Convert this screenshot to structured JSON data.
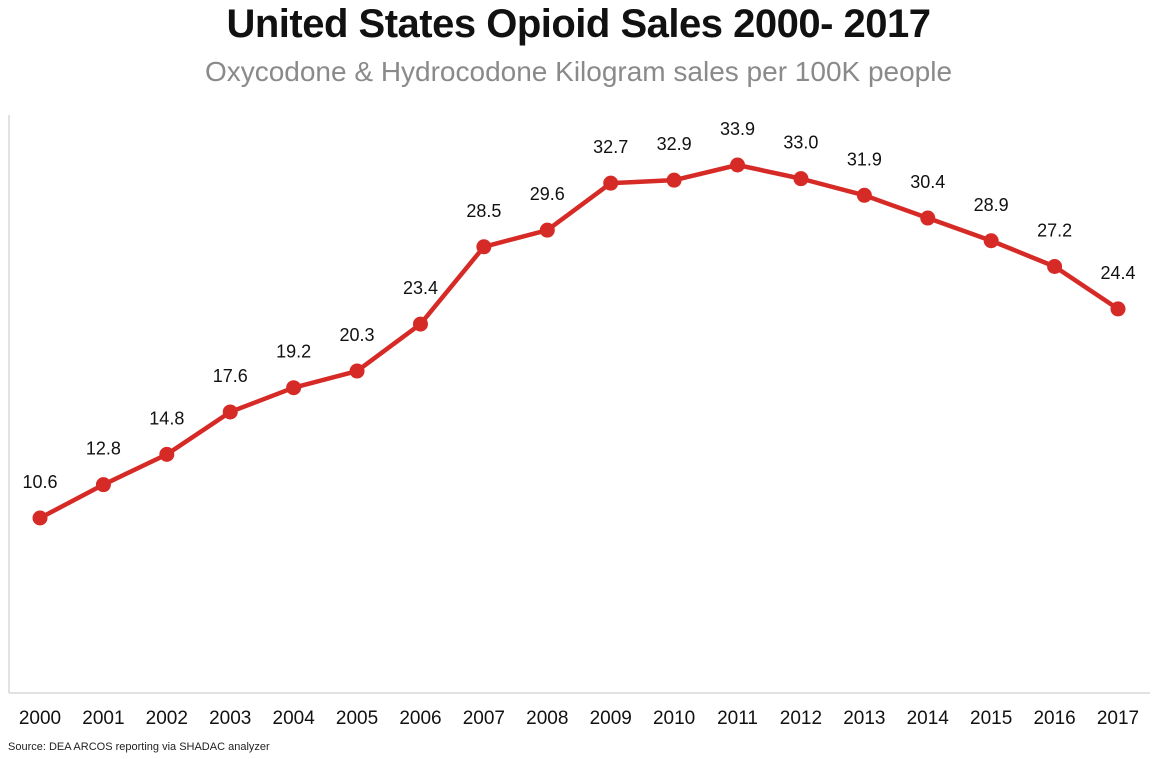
{
  "colors": {
    "line": "#d62a27",
    "axis": "#d9d9d9",
    "text": "#111111",
    "subtitle": "#8a8a8a"
  },
  "chart_data": {
    "type": "line",
    "title": "United States Opioid Sales 2000- 2017",
    "subtitle": "Oxycodone & Hydrocodone Kilogram sales per 100K people",
    "source": "Source: DEA ARCOS reporting via SHADAC analyzer",
    "xlabel": "",
    "ylabel": "",
    "categories": [
      "2000",
      "2001",
      "2002",
      "2003",
      "2004",
      "2005",
      "2006",
      "2007",
      "2008",
      "2009",
      "2010",
      "2011",
      "2012",
      "2013",
      "2014",
      "2015",
      "2016",
      "2017"
    ],
    "series": [
      {
        "values": [
          10.6,
          12.8,
          14.8,
          17.6,
          19.2,
          20.3,
          23.4,
          28.5,
          29.6,
          32.7,
          32.9,
          33.9,
          33.0,
          31.9,
          30.4,
          28.9,
          27.2,
          24.4
        ],
        "labels": [
          "10.6",
          "12.8",
          "14.8",
          "17.6",
          "19.2",
          "20.3",
          "23.4",
          "28.5",
          "29.6",
          "32.7",
          "32.9",
          "33.9",
          "33.0",
          "31.9",
          "30.4",
          "28.9",
          "27.2",
          "24.4"
        ]
      }
    ],
    "ylim": [
      0,
      35
    ],
    "grid": false,
    "legend": "none"
  }
}
